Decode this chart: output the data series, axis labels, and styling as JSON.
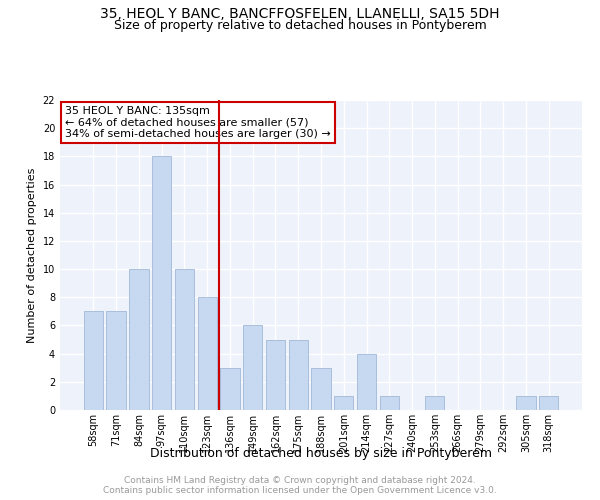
{
  "title": "35, HEOL Y BANC, BANCFFOSFELEN, LLANELLI, SA15 5DH",
  "subtitle": "Size of property relative to detached houses in Pontyberem",
  "xlabel": "Distribution of detached houses by size in Pontyberem",
  "ylabel": "Number of detached properties",
  "categories": [
    "58sqm",
    "71sqm",
    "84sqm",
    "97sqm",
    "110sqm",
    "123sqm",
    "136sqm",
    "149sqm",
    "162sqm",
    "175sqm",
    "188sqm",
    "201sqm",
    "214sqm",
    "227sqm",
    "240sqm",
    "253sqm",
    "266sqm",
    "279sqm",
    "292sqm",
    "305sqm",
    "318sqm"
  ],
  "values": [
    7,
    7,
    10,
    18,
    10,
    8,
    3,
    6,
    5,
    5,
    3,
    1,
    4,
    1,
    0,
    1,
    0,
    0,
    0,
    1,
    1
  ],
  "bar_color": "#c6d9f0",
  "bar_edge_color": "#a0b8d8",
  "vline_x": 6.0,
  "vline_color": "#cc0000",
  "annotation_title": "35 HEOL Y BANC: 135sqm",
  "annotation_line1": "← 64% of detached houses are smaller (57)",
  "annotation_line2": "34% of semi-detached houses are larger (30) →",
  "annotation_box_color": "#cc0000",
  "ylim": [
    0,
    22
  ],
  "yticks": [
    0,
    2,
    4,
    6,
    8,
    10,
    12,
    14,
    16,
    18,
    20,
    22
  ],
  "footer_line1": "Contains HM Land Registry data © Crown copyright and database right 2024.",
  "footer_line2": "Contains public sector information licensed under the Open Government Licence v3.0.",
  "bg_color": "#eef2fa",
  "grid_color": "#ffffff",
  "title_fontsize": 10,
  "subtitle_fontsize": 9,
  "xlabel_fontsize": 9,
  "ylabel_fontsize": 8,
  "annotation_fontsize": 8,
  "tick_fontsize": 7,
  "footer_fontsize": 6.5
}
